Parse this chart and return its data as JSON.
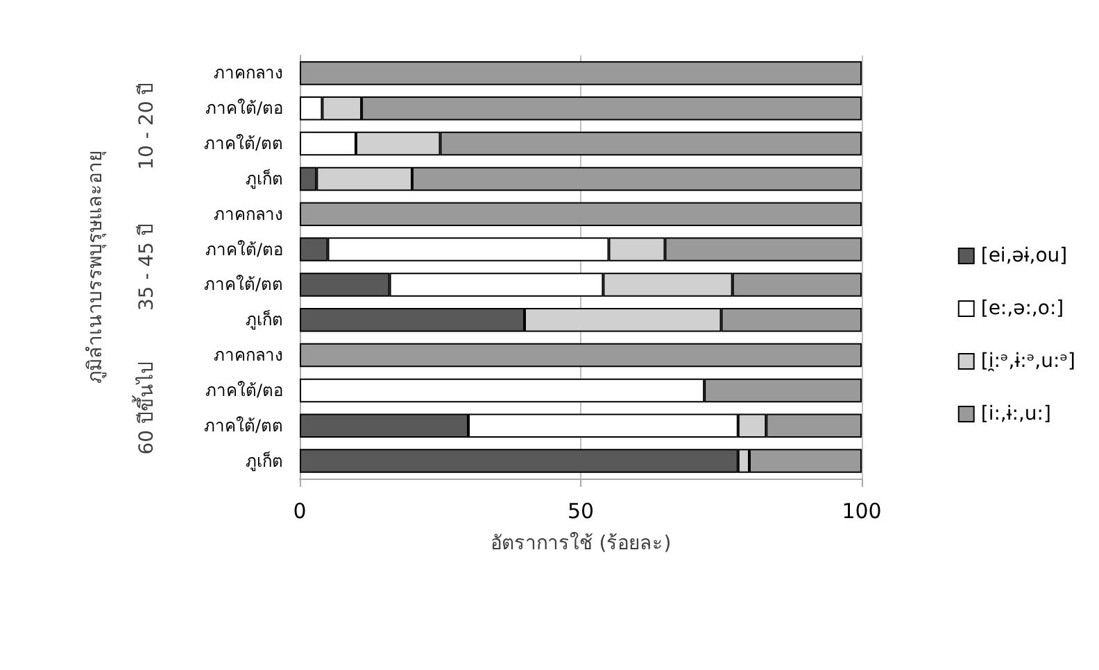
{
  "chart_data": {
    "type": "bar",
    "orientation": "horizontal",
    "stacked": true,
    "categories": [
      "ภาคกลาง",
      "ภาคใต้/ตอ",
      "ภาคใต้/ตต",
      "ภูเก็ต",
      "ภาคกลาง",
      "ภาคใต้/ตอ",
      "ภาคใต้/ตต",
      "ภูเก็ต",
      "ภาคกลาง",
      "ภาคใต้/ตอ",
      "ภาคใต้/ตต",
      "ภูเก็ต"
    ],
    "series": [
      {
        "name": "[ei,əɨ,ou]",
        "color": "#595959",
        "values": [
          0,
          0,
          0,
          3,
          0,
          5,
          16,
          40,
          0,
          0,
          30,
          78
        ]
      },
      {
        "name": "[e:,ə:,o:]",
        "color": "#ffffff",
        "values": [
          0,
          4,
          10,
          0,
          0,
          50,
          38,
          0,
          0,
          72,
          48,
          0
        ]
      },
      {
        "name": "[i̯:ᵊ,ɨ:ᵊ,u:ᵊ]",
        "color": "#d0d0d0",
        "values": [
          0,
          7,
          15,
          17,
          0,
          10,
          23,
          35,
          0,
          0,
          5,
          2
        ]
      },
      {
        "name": "[i:,ɨ:,u:]",
        "color": "#9a9a9a",
        "values": [
          100,
          89,
          75,
          80,
          100,
          35,
          23,
          25,
          100,
          28,
          17,
          20
        ]
      }
    ],
    "xlim": [
      0,
      100
    ],
    "xticks": [
      0,
      50,
      100
    ],
    "xlabel": "อัตราการใช้ (ร้อยละ)",
    "ylabel": "ภูมิลำเนาบรรพบุรุษและอายุ",
    "annotations": [
      "10 - 20 ปี",
      "35 - 45 ปี",
      "60 ปีขึ้นไป"
    ],
    "grid": "x",
    "legend": "right"
  }
}
